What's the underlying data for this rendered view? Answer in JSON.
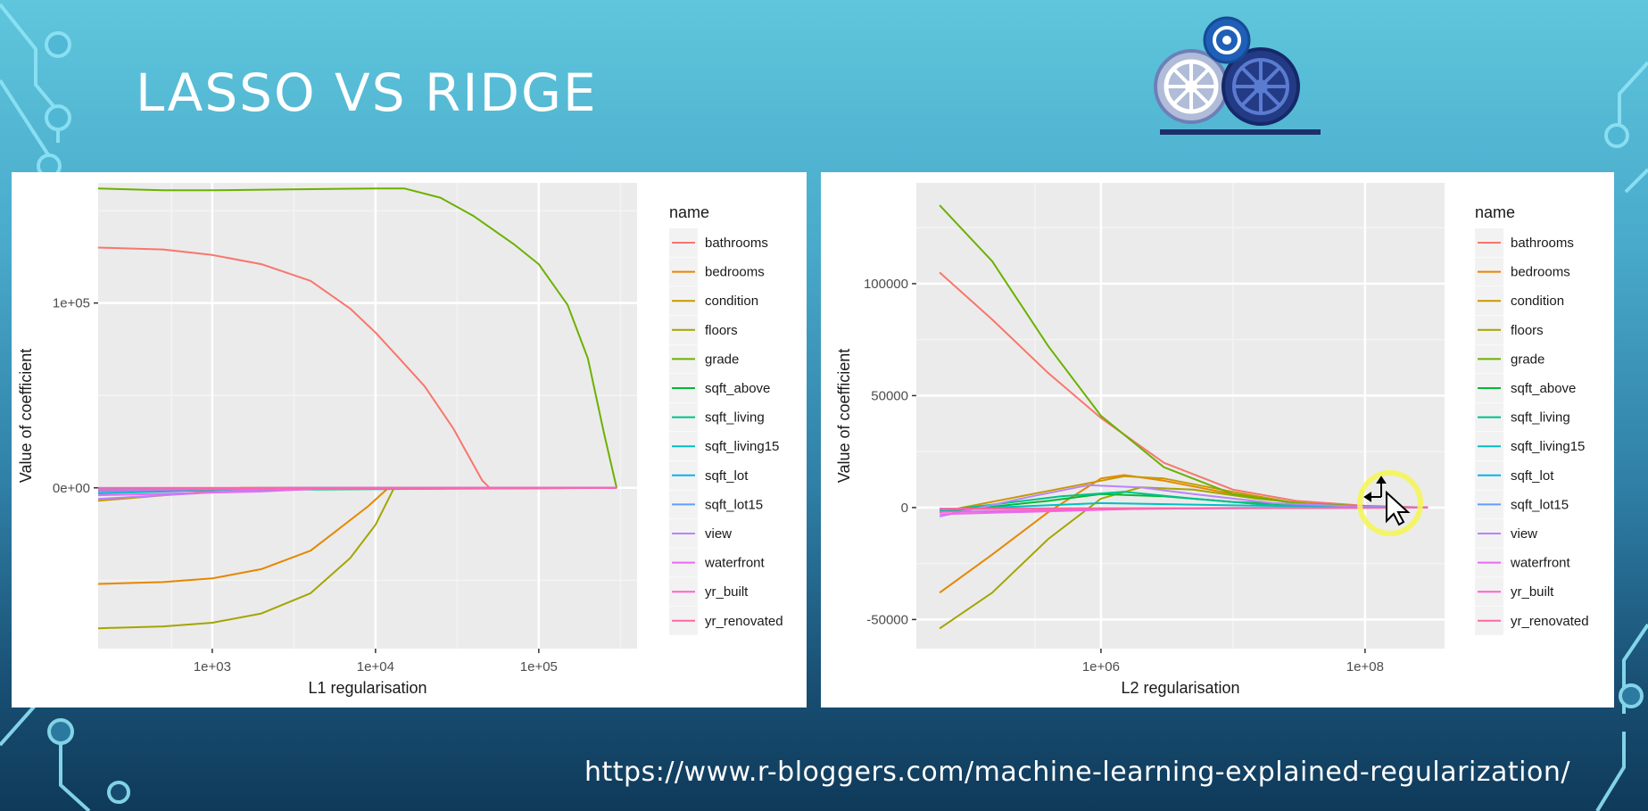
{
  "slide": {
    "title": "LASSO VS RIDGE",
    "url": "https://www.r-bloggers.com/machine-learning-explained-regularization/"
  },
  "colors": {
    "panel_bg": "#ebebeb",
    "grid_major": "#ffffff",
    "grid_minor": "#f4f4f4",
    "highlight": "#f5f55a"
  },
  "icons": {
    "logo": "gears-logo-icon",
    "cursor": "move-cursor-icon"
  },
  "series_colors": {
    "bathrooms": "#f8766d",
    "bedrooms": "#e58700",
    "condition": "#c99800",
    "floors": "#a3a500",
    "grade": "#6bb100",
    "sqft_above": "#00ba38",
    "sqft_living": "#00c08b",
    "sqft_living15": "#00bfc4",
    "sqft_lot": "#00b4f0",
    "sqft_lot15": "#619cff",
    "view": "#b983ff",
    "waterfront": "#e76bf3",
    "yr_built": "#fd61d1",
    "yr_renovated": "#ff67a4"
  },
  "chart_data": [
    {
      "type": "line",
      "xlabel": "L1 regularisation",
      "ylabel": "Value of coefficient",
      "legend_title": "name",
      "legend_position": "right",
      "x_scale": "log10",
      "xlim": [
        200,
        400000
      ],
      "ylim": [
        -87000,
        165000
      ],
      "x_ticks": [
        {
          "v": 1000,
          "label": "1e+03"
        },
        {
          "v": 10000,
          "label": "1e+04"
        },
        {
          "v": 100000,
          "label": "1e+05"
        }
      ],
      "y_ticks": [
        {
          "v": 0,
          "label": "0e+00"
        },
        {
          "v": 100000,
          "label": "1e+05"
        }
      ],
      "grid": true,
      "series": [
        {
          "name": "bathrooms",
          "points": [
            [
              200,
              130000
            ],
            [
              500,
              129000
            ],
            [
              1000,
              126000
            ],
            [
              2000,
              121000
            ],
            [
              4000,
              112000
            ],
            [
              7000,
              97000
            ],
            [
              10000,
              84000
            ],
            [
              14000,
              70000
            ],
            [
              20000,
              55000
            ],
            [
              30000,
              32000
            ],
            [
              45000,
              4000
            ],
            [
              50000,
              0
            ],
            [
              300000,
              0
            ]
          ]
        },
        {
          "name": "bedrooms",
          "points": [
            [
              200,
              -52000
            ],
            [
              500,
              -51000
            ],
            [
              1000,
              -49000
            ],
            [
              2000,
              -44000
            ],
            [
              4000,
              -34000
            ],
            [
              6000,
              -22000
            ],
            [
              9000,
              -10000
            ],
            [
              12000,
              0
            ],
            [
              300000,
              0
            ]
          ]
        },
        {
          "name": "condition",
          "points": [
            [
              200,
              -7000
            ],
            [
              700,
              -3000
            ],
            [
              1500,
              0
            ],
            [
              300000,
              0
            ]
          ]
        },
        {
          "name": "floors",
          "points": [
            [
              200,
              -76000
            ],
            [
              500,
              -75000
            ],
            [
              1000,
              -73000
            ],
            [
              2000,
              -68000
            ],
            [
              4000,
              -57000
            ],
            [
              7000,
              -38000
            ],
            [
              10000,
              -20000
            ],
            [
              13000,
              0
            ],
            [
              300000,
              0
            ]
          ]
        },
        {
          "name": "grade",
          "points": [
            [
              200,
              162000
            ],
            [
              500,
              161000
            ],
            [
              1000,
              161000
            ],
            [
              3000,
              161500
            ],
            [
              10000,
              162000
            ],
            [
              15000,
              162000
            ],
            [
              25000,
              157000
            ],
            [
              40000,
              147000
            ],
            [
              70000,
              132000
            ],
            [
              100000,
              121000
            ],
            [
              150000,
              99000
            ],
            [
              200000,
              70000
            ],
            [
              250000,
              30000
            ],
            [
              300000,
              0
            ]
          ]
        },
        {
          "name": "sqft_above",
          "points": [
            [
              200,
              -1000
            ],
            [
              300000,
              0
            ]
          ]
        },
        {
          "name": "sqft_living",
          "points": [
            [
              200,
              -1500
            ],
            [
              300000,
              0
            ]
          ]
        },
        {
          "name": "sqft_living15",
          "points": [
            [
              200,
              -3000
            ],
            [
              3000,
              0
            ],
            [
              300000,
              0
            ]
          ]
        },
        {
          "name": "sqft_lot",
          "points": [
            [
              200,
              -600
            ],
            [
              300000,
              0
            ]
          ]
        },
        {
          "name": "sqft_lot15",
          "points": [
            [
              200,
              -2000
            ],
            [
              2000,
              0
            ],
            [
              300000,
              0
            ]
          ]
        },
        {
          "name": "view",
          "points": [
            [
              200,
              -6000
            ],
            [
              800,
              -3000
            ],
            [
              3000,
              0
            ],
            [
              300000,
              0
            ]
          ]
        },
        {
          "name": "waterfront",
          "points": [
            [
              200,
              -4000
            ],
            [
              2000,
              -2000
            ],
            [
              6000,
              0
            ],
            [
              300000,
              0
            ]
          ]
        },
        {
          "name": "yr_built",
          "points": [
            [
              200,
              -1000
            ],
            [
              300000,
              0
            ]
          ]
        },
        {
          "name": "yr_renovated",
          "points": [
            [
              200,
              0
            ],
            [
              300000,
              0
            ]
          ]
        }
      ]
    },
    {
      "type": "line",
      "xlabel": "L2 regularisation",
      "ylabel": "Value of coefficient",
      "legend_title": "name",
      "legend_position": "right",
      "x_scale": "log10",
      "xlim": [
        40000,
        400000000
      ],
      "ylim": [
        -63000,
        145000
      ],
      "x_ticks": [
        {
          "v": 1000000,
          "label": "1e+06"
        },
        {
          "v": 100000000,
          "label": "1e+08"
        }
      ],
      "y_ticks": [
        {
          "v": -50000,
          "label": "-50000"
        },
        {
          "v": 0,
          "label": "0"
        },
        {
          "v": 50000,
          "label": "50000"
        },
        {
          "v": 100000,
          "label": "100000"
        }
      ],
      "grid": true,
      "series": [
        {
          "name": "bathrooms",
          "points": [
            [
              60000,
              105000
            ],
            [
              150000,
              84000
            ],
            [
              400000,
              60000
            ],
            [
              1000000,
              40000
            ],
            [
              3000000,
              20000
            ],
            [
              10000000,
              8000
            ],
            [
              30000000,
              3000
            ],
            [
              100000000,
              800
            ],
            [
              300000000,
              0
            ]
          ]
        },
        {
          "name": "bedrooms",
          "points": [
            [
              60000,
              -38000
            ],
            [
              150000,
              -21000
            ],
            [
              400000,
              -2000
            ],
            [
              1000000,
              13000
            ],
            [
              1500000,
              14500
            ],
            [
              3000000,
              12000
            ],
            [
              10000000,
              6000
            ],
            [
              30000000,
              2000
            ],
            [
              100000000,
              500
            ],
            [
              300000000,
              0
            ]
          ]
        },
        {
          "name": "condition",
          "points": [
            [
              60000,
              -2000
            ],
            [
              300000,
              6000
            ],
            [
              1500000,
              14000
            ],
            [
              3000000,
              13000
            ],
            [
              10000000,
              7000
            ],
            [
              30000000,
              2000
            ],
            [
              100000000,
              500
            ],
            [
              300000000,
              0
            ]
          ]
        },
        {
          "name": "floors",
          "points": [
            [
              60000,
              -54000
            ],
            [
              150000,
              -38000
            ],
            [
              400000,
              -14000
            ],
            [
              1000000,
              4000
            ],
            [
              2000000,
              9000
            ],
            [
              5000000,
              8000
            ],
            [
              15000000,
              4000
            ],
            [
              50000000,
              1000
            ],
            [
              300000000,
              0
            ]
          ]
        },
        {
          "name": "grade",
          "points": [
            [
              60000,
              135000
            ],
            [
              150000,
              110000
            ],
            [
              400000,
              72000
            ],
            [
              1000000,
              41000
            ],
            [
              3000000,
              18000
            ],
            [
              10000000,
              6000
            ],
            [
              30000000,
              2000
            ],
            [
              100000000,
              500
            ],
            [
              300000000,
              0
            ]
          ]
        },
        {
          "name": "sqft_above",
          "points": [
            [
              60000,
              -2000
            ],
            [
              400000,
              3000
            ],
            [
              1000000,
              6000
            ],
            [
              3000000,
              5000
            ],
            [
              10000000,
              2500
            ],
            [
              100000000,
              200
            ],
            [
              300000000,
              0
            ]
          ]
        },
        {
          "name": "sqft_living",
          "points": [
            [
              60000,
              -1500
            ],
            [
              500000,
              5000
            ],
            [
              1500000,
              7000
            ],
            [
              5000000,
              4000
            ],
            [
              20000000,
              1000
            ],
            [
              300000000,
              0
            ]
          ]
        },
        {
          "name": "sqft_living15",
          "points": [
            [
              60000,
              -1000
            ],
            [
              1000000,
              2000
            ],
            [
              10000000,
              1000
            ],
            [
              300000000,
              0
            ]
          ]
        },
        {
          "name": "sqft_lot",
          "points": [
            [
              60000,
              -500
            ],
            [
              300000000,
              0
            ]
          ]
        },
        {
          "name": "sqft_lot15",
          "points": [
            [
              60000,
              -700
            ],
            [
              300000000,
              0
            ]
          ]
        },
        {
          "name": "view",
          "points": [
            [
              60000,
              -4000
            ],
            [
              300000,
              5000
            ],
            [
              800000,
              10000
            ],
            [
              2000000,
              9000
            ],
            [
              5000000,
              6000
            ],
            [
              20000000,
              2000
            ],
            [
              100000000,
              300
            ],
            [
              300000000,
              0
            ]
          ]
        },
        {
          "name": "waterfront",
          "points": [
            [
              60000,
              -3000
            ],
            [
              500000,
              -1500
            ],
            [
              2000000,
              -500
            ],
            [
              300000000,
              0
            ]
          ]
        },
        {
          "name": "yr_built",
          "points": [
            [
              60000,
              -2000
            ],
            [
              200000,
              -1500
            ],
            [
              1000000,
              -800
            ],
            [
              10000000,
              -200
            ],
            [
              300000000,
              0
            ]
          ]
        },
        {
          "name": "yr_renovated",
          "points": [
            [
              60000,
              -500
            ],
            [
              300000000,
              0
            ]
          ]
        }
      ]
    }
  ]
}
